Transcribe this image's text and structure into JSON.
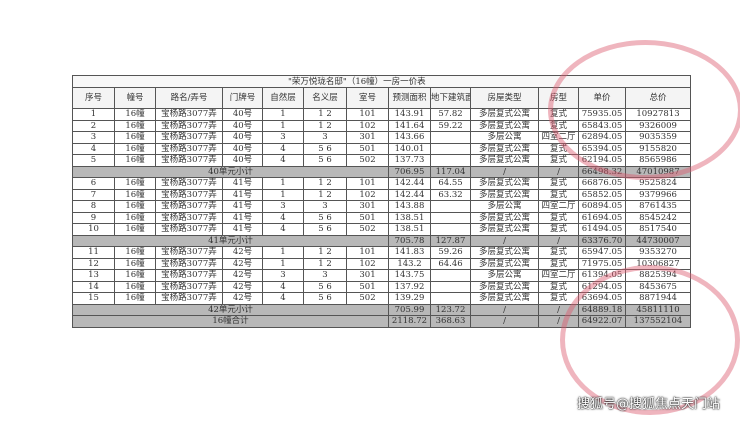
{
  "title": "\"荣万悦珑名邸\"（16幢）一房一价表",
  "headers": [
    "序号",
    "幢号",
    "路名/弄号",
    "门牌号",
    "自然层",
    "名义层",
    "室号",
    "预测面积",
    "地下建筑面积",
    "房屋类型",
    "房型",
    "单价",
    "总价"
  ],
  "rows": [
    [
      "1",
      "16幢",
      "宝杨路3077弄",
      "40号",
      "1",
      "1 2",
      "101",
      "143.91",
      "57.82",
      "多层复式公寓",
      "复式",
      "75935.05",
      "10927813"
    ],
    [
      "2",
      "16幢",
      "宝杨路3077弄",
      "40号",
      "1",
      "1 2",
      "102",
      "141.64",
      "59.22",
      "多层复式公寓",
      "复式",
      "65843.05",
      "9326009"
    ],
    [
      "3",
      "16幢",
      "宝杨路3077弄",
      "40号",
      "3",
      "3",
      "301",
      "143.66",
      "",
      "多层公寓",
      "四室二厅",
      "62894.05",
      "9035359"
    ],
    [
      "4",
      "16幢",
      "宝杨路3077弄",
      "40号",
      "4",
      "5 6",
      "501",
      "140.01",
      "",
      "多层复式公寓",
      "复式",
      "65394.05",
      "9155820"
    ],
    [
      "5",
      "16幢",
      "宝杨路3077弄",
      "40号",
      "4",
      "5 6",
      "502",
      "137.73",
      "",
      "多层复式公寓",
      "复式",
      "62194.05",
      "8565986"
    ],
    {
      "label": "40单元小计",
      "area": "706.95",
      "under": "117.04",
      "type": "/",
      "layout": "/",
      "price": "66498.32",
      "total": "47010987"
    },
    [
      "6",
      "16幢",
      "宝杨路3077弄",
      "41号",
      "1",
      "1 2",
      "101",
      "142.44",
      "64.55",
      "多层复式公寓",
      "复式",
      "66876.05",
      "9525824"
    ],
    [
      "7",
      "16幢",
      "宝杨路3077弄",
      "41号",
      "1",
      "1 2",
      "102",
      "142.44",
      "63.32",
      "多层复式公寓",
      "复式",
      "65852.05",
      "9379966"
    ],
    [
      "8",
      "16幢",
      "宝杨路3077弄",
      "41号",
      "3",
      "3",
      "301",
      "143.88",
      "",
      "多层公寓",
      "四室二厅",
      "60894.05",
      "8761435"
    ],
    [
      "9",
      "16幢",
      "宝杨路3077弄",
      "41号",
      "4",
      "5 6",
      "501",
      "138.51",
      "",
      "多层复式公寓",
      "复式",
      "61694.05",
      "8545242"
    ],
    [
      "10",
      "16幢",
      "宝杨路3077弄",
      "41号",
      "4",
      "5 6",
      "502",
      "138.51",
      "",
      "多层复式公寓",
      "复式",
      "61494.05",
      "8517540"
    ],
    {
      "label": "41单元小计",
      "area": "705.78",
      "under": "127.87",
      "type": "/",
      "layout": "/",
      "price": "63376.70",
      "total": "44730007"
    },
    [
      "11",
      "16幢",
      "宝杨路3077弄",
      "42号",
      "1",
      "1 2",
      "101",
      "141.83",
      "59.26",
      "多层复式公寓",
      "复式",
      "65947.05",
      "9353270"
    ],
    [
      "12",
      "16幢",
      "宝杨路3077弄",
      "42号",
      "1",
      "1 2",
      "102",
      "143.2",
      "64.46",
      "多层复式公寓",
      "复式",
      "71975.05",
      "10306827"
    ],
    [
      "13",
      "16幢",
      "宝杨路3077弄",
      "42号",
      "3",
      "3",
      "301",
      "143.75",
      "",
      "多层公寓",
      "四室二厅",
      "61394.05",
      "8825394"
    ],
    [
      "14",
      "16幢",
      "宝杨路3077弄",
      "42号",
      "4",
      "5 6",
      "501",
      "137.92",
      "",
      "多层复式公寓",
      "复式",
      "61294.05",
      "8453675"
    ],
    [
      "15",
      "16幢",
      "宝杨路3077弄",
      "42号",
      "4",
      "5 6",
      "502",
      "139.29",
      "",
      "多层复式公寓",
      "复式",
      "63694.05",
      "8871944"
    ],
    {
      "label": "42单元小计",
      "area": "705.99",
      "under": "123.72",
      "type": "/",
      "layout": "/",
      "price": "64889.18",
      "total": "45811110"
    },
    {
      "label": "16幢合计",
      "area": "2118.72",
      "under": "368.63",
      "type": "/",
      "layout": "/",
      "price": "64922.07",
      "total": "137552104"
    }
  ],
  "watermark": "搜狐号@搜狐焦点天门站",
  "colors": {
    "stamp": "#dc5a6e",
    "subtotal_bg": "#b8b8b8"
  }
}
